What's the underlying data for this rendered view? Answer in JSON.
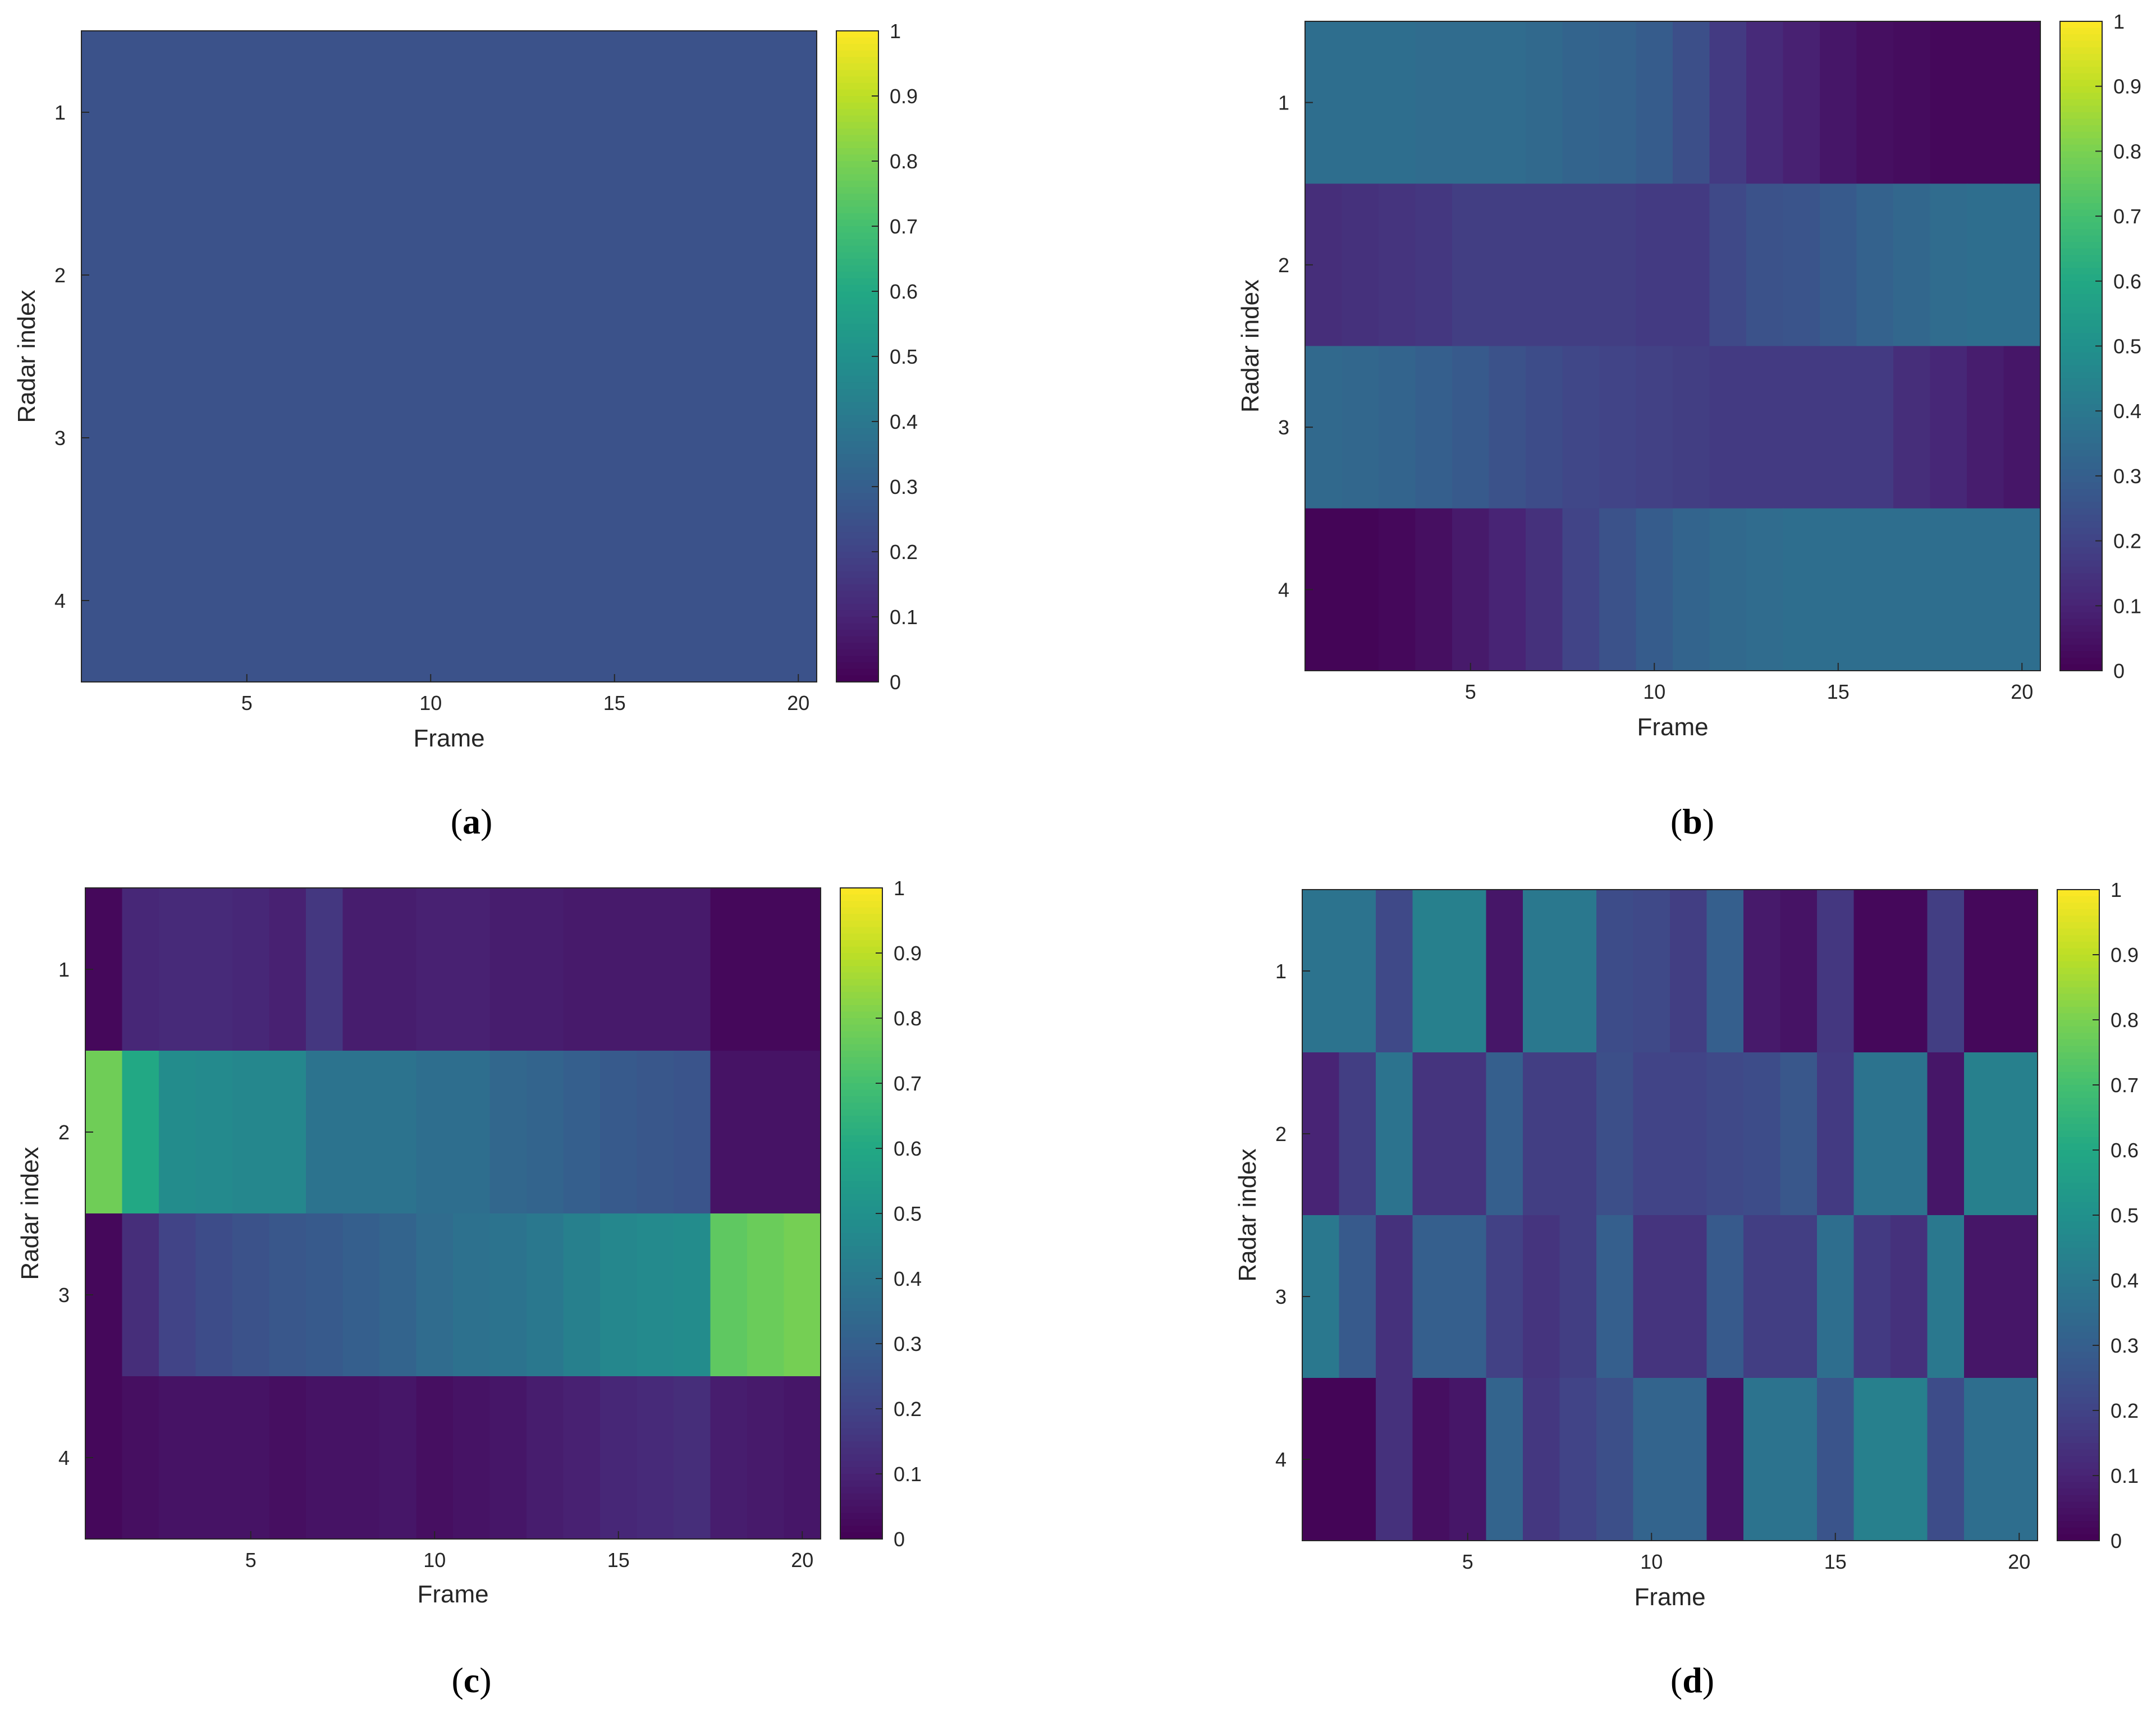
{
  "chart_data": [
    {
      "id": "a",
      "type": "heatmap",
      "panel_label": "a",
      "xlabel": "Frame",
      "ylabel": "Radar index",
      "x": [
        1,
        2,
        3,
        4,
        5,
        6,
        7,
        8,
        9,
        10,
        11,
        12,
        13,
        14,
        15,
        16,
        17,
        18,
        19,
        20
      ],
      "xticks": [
        "5",
        "10",
        "15",
        "20"
      ],
      "y": [
        1,
        2,
        3,
        4
      ],
      "yticks": [
        "1",
        "2",
        "3",
        "4"
      ],
      "colorbar": {
        "min": 0,
        "max": 1,
        "ticks": [
          "0",
          "0.1",
          "0.2",
          "0.3",
          "0.4",
          "0.5",
          "0.6",
          "0.7",
          "0.8",
          "0.9",
          "1"
        ]
      },
      "values": [
        [
          0.25,
          0.25,
          0.25,
          0.25,
          0.25,
          0.25,
          0.25,
          0.25,
          0.25,
          0.25,
          0.25,
          0.25,
          0.25,
          0.25,
          0.25,
          0.25,
          0.25,
          0.25,
          0.25,
          0.25
        ],
        [
          0.25,
          0.25,
          0.25,
          0.25,
          0.25,
          0.25,
          0.25,
          0.25,
          0.25,
          0.25,
          0.25,
          0.25,
          0.25,
          0.25,
          0.25,
          0.25,
          0.25,
          0.25,
          0.25,
          0.25
        ],
        [
          0.25,
          0.25,
          0.25,
          0.25,
          0.25,
          0.25,
          0.25,
          0.25,
          0.25,
          0.25,
          0.25,
          0.25,
          0.25,
          0.25,
          0.25,
          0.25,
          0.25,
          0.25,
          0.25,
          0.25
        ],
        [
          0.25,
          0.25,
          0.25,
          0.25,
          0.25,
          0.25,
          0.25,
          0.25,
          0.25,
          0.25,
          0.25,
          0.25,
          0.25,
          0.25,
          0.25,
          0.25,
          0.25,
          0.25,
          0.25,
          0.25
        ]
      ]
    },
    {
      "id": "b",
      "type": "heatmap",
      "panel_label": "b",
      "xlabel": "Frame",
      "ylabel": "Radar index",
      "x": [
        1,
        2,
        3,
        4,
        5,
        6,
        7,
        8,
        9,
        10,
        11,
        12,
        13,
        14,
        15,
        16,
        17,
        18,
        19,
        20
      ],
      "xticks": [
        "5",
        "10",
        "15",
        "20"
      ],
      "y": [
        1,
        2,
        3,
        4
      ],
      "yticks": [
        "1",
        "2",
        "3",
        "4"
      ],
      "colorbar": {
        "min": 0,
        "max": 1,
        "ticks": [
          "0",
          "0.1",
          "0.2",
          "0.3",
          "0.4",
          "0.5",
          "0.6",
          "0.7",
          "0.8",
          "0.9",
          "1"
        ]
      },
      "values": [
        [
          0.36,
          0.36,
          0.36,
          0.35,
          0.35,
          0.35,
          0.34,
          0.32,
          0.31,
          0.29,
          0.24,
          0.17,
          0.12,
          0.09,
          0.06,
          0.04,
          0.03,
          0.02,
          0.02,
          0.02
        ],
        [
          0.13,
          0.14,
          0.15,
          0.16,
          0.18,
          0.18,
          0.18,
          0.18,
          0.18,
          0.17,
          0.17,
          0.22,
          0.25,
          0.26,
          0.28,
          0.31,
          0.33,
          0.35,
          0.36,
          0.36
        ],
        [
          0.34,
          0.33,
          0.32,
          0.3,
          0.28,
          0.25,
          0.23,
          0.21,
          0.2,
          0.19,
          0.18,
          0.17,
          0.17,
          0.17,
          0.17,
          0.17,
          0.13,
          0.11,
          0.08,
          0.06
        ],
        [
          0.01,
          0.01,
          0.02,
          0.04,
          0.07,
          0.1,
          0.14,
          0.2,
          0.25,
          0.29,
          0.32,
          0.34,
          0.35,
          0.36,
          0.36,
          0.36,
          0.36,
          0.36,
          0.36,
          0.36
        ]
      ]
    },
    {
      "id": "c",
      "type": "heatmap",
      "panel_label": "c",
      "xlabel": "Frame",
      "ylabel": "Radar index",
      "x": [
        1,
        2,
        3,
        4,
        5,
        6,
        7,
        8,
        9,
        10,
        11,
        12,
        13,
        14,
        15,
        16,
        17,
        18,
        19,
        20
      ],
      "xticks": [
        "5",
        "10",
        "15",
        "20"
      ],
      "y": [
        1,
        2,
        3,
        4
      ],
      "yticks": [
        "1",
        "2",
        "3",
        "4"
      ],
      "colorbar": {
        "min": 0,
        "max": 1,
        "ticks": [
          "0",
          "0.1",
          "0.2",
          "0.3",
          "0.4",
          "0.5",
          "0.6",
          "0.7",
          "0.8",
          "0.9",
          "1"
        ]
      },
      "values": [
        [
          0.02,
          0.11,
          0.12,
          0.12,
          0.11,
          0.09,
          0.16,
          0.08,
          0.08,
          0.09,
          0.09,
          0.08,
          0.08,
          0.07,
          0.07,
          0.07,
          0.07,
          0.02,
          0.02,
          0.02
        ],
        [
          0.78,
          0.6,
          0.48,
          0.47,
          0.46,
          0.46,
          0.38,
          0.38,
          0.38,
          0.36,
          0.36,
          0.33,
          0.32,
          0.3,
          0.28,
          0.27,
          0.26,
          0.05,
          0.05,
          0.05
        ],
        [
          0.02,
          0.13,
          0.2,
          0.23,
          0.25,
          0.27,
          0.28,
          0.3,
          0.32,
          0.35,
          0.37,
          0.38,
          0.4,
          0.43,
          0.46,
          0.47,
          0.48,
          0.75,
          0.77,
          0.79
        ],
        [
          0.02,
          0.04,
          0.05,
          0.05,
          0.05,
          0.04,
          0.05,
          0.05,
          0.06,
          0.04,
          0.05,
          0.06,
          0.08,
          0.09,
          0.11,
          0.12,
          0.13,
          0.08,
          0.07,
          0.06
        ]
      ]
    },
    {
      "id": "d",
      "type": "heatmap",
      "panel_label": "d",
      "xlabel": "Frame",
      "ylabel": "Radar index",
      "x": [
        1,
        2,
        3,
        4,
        5,
        6,
        7,
        8,
        9,
        10,
        11,
        12,
        13,
        14,
        15,
        16,
        17,
        18,
        19,
        20
      ],
      "xticks": [
        "5",
        "10",
        "15",
        "20"
      ],
      "y": [
        1,
        2,
        3,
        4
      ],
      "yticks": [
        "1",
        "2",
        "3",
        "4"
      ],
      "colorbar": {
        "min": 0,
        "max": 1,
        "ticks": [
          "0",
          "0.1",
          "0.2",
          "0.3",
          "0.4",
          "0.5",
          "0.6",
          "0.7",
          "0.8",
          "0.9",
          "1"
        ]
      },
      "values": [
        [
          0.38,
          0.38,
          0.22,
          0.43,
          0.43,
          0.06,
          0.4,
          0.4,
          0.23,
          0.22,
          0.18,
          0.3,
          0.07,
          0.05,
          0.16,
          0.02,
          0.02,
          0.18,
          0.02,
          0.02
        ],
        [
          0.1,
          0.18,
          0.38,
          0.15,
          0.15,
          0.3,
          0.18,
          0.18,
          0.24,
          0.2,
          0.2,
          0.22,
          0.23,
          0.27,
          0.17,
          0.38,
          0.38,
          0.06,
          0.43,
          0.43
        ],
        [
          0.4,
          0.28,
          0.14,
          0.3,
          0.3,
          0.19,
          0.15,
          0.18,
          0.3,
          0.15,
          0.15,
          0.28,
          0.18,
          0.18,
          0.36,
          0.17,
          0.14,
          0.4,
          0.06,
          0.06
        ],
        [
          0.01,
          0.01,
          0.14,
          0.04,
          0.06,
          0.32,
          0.16,
          0.2,
          0.24,
          0.32,
          0.32,
          0.05,
          0.38,
          0.38,
          0.26,
          0.43,
          0.43,
          0.23,
          0.36,
          0.36
        ]
      ]
    }
  ]
}
